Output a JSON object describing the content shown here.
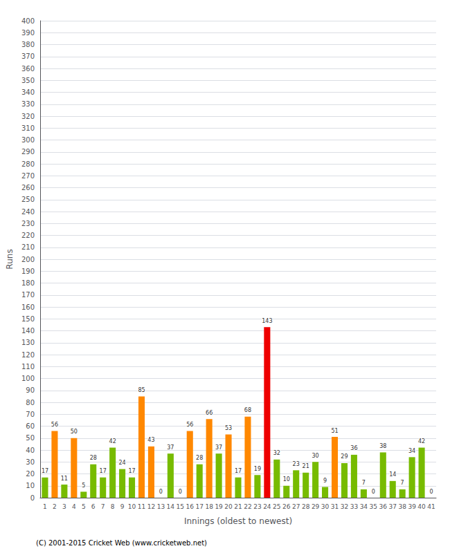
{
  "chart_data": {
    "type": "bar",
    "xlabel": "Innings (oldest to newest)",
    "ylabel": "Runs",
    "annotation": "(C) 2001-2015 Cricket Web (www.cricketweb.net)",
    "categories": [
      "1",
      "2",
      "3",
      "4",
      "5",
      "6",
      "7",
      "8",
      "9",
      "10",
      "11",
      "12",
      "13",
      "14",
      "15",
      "16",
      "17",
      "18",
      "19",
      "20",
      "21",
      "22",
      "23",
      "24",
      "25",
      "26",
      "27",
      "28",
      "29",
      "30",
      "31",
      "32",
      "33",
      "34",
      "35",
      "36",
      "37",
      "38",
      "39",
      "40",
      "41"
    ],
    "values": [
      17,
      56,
      11,
      50,
      5,
      28,
      17,
      42,
      24,
      17,
      85,
      43,
      0,
      37,
      0,
      56,
      28,
      66,
      37,
      53,
      17,
      68,
      19,
      143,
      32,
      10,
      23,
      21,
      30,
      9,
      51,
      29,
      36,
      7,
      0,
      38,
      14,
      7,
      34,
      42,
      0
    ],
    "colors": [
      "#77bb00",
      "#ff8800",
      "#77bb00",
      "#ff8800",
      "#77bb00",
      "#77bb00",
      "#77bb00",
      "#77bb00",
      "#77bb00",
      "#77bb00",
      "#ff8800",
      "#ff8800",
      "#77bb00",
      "#77bb00",
      "#77bb00",
      "#ff8800",
      "#77bb00",
      "#ff8800",
      "#77bb00",
      "#ff8800",
      "#77bb00",
      "#ff8800",
      "#77bb00",
      "#ee0000",
      "#77bb00",
      "#77bb00",
      "#77bb00",
      "#77bb00",
      "#77bb00",
      "#77bb00",
      "#ff8800",
      "#77bb00",
      "#77bb00",
      "#77bb00",
      "#77bb00",
      "#77bb00",
      "#77bb00",
      "#77bb00",
      "#77bb00",
      "#77bb00",
      "#77bb00"
    ],
    "ylim": [
      0,
      400
    ],
    "yticks": [
      0,
      10,
      20,
      30,
      40,
      50,
      60,
      70,
      80,
      90,
      100,
      110,
      120,
      130,
      140,
      150,
      160,
      170,
      180,
      190,
      200,
      210,
      220,
      230,
      240,
      250,
      260,
      270,
      280,
      290,
      300,
      310,
      320,
      330,
      340,
      350,
      360,
      370,
      380,
      390,
      400
    ],
    "grid": true,
    "data_labels": true
  }
}
